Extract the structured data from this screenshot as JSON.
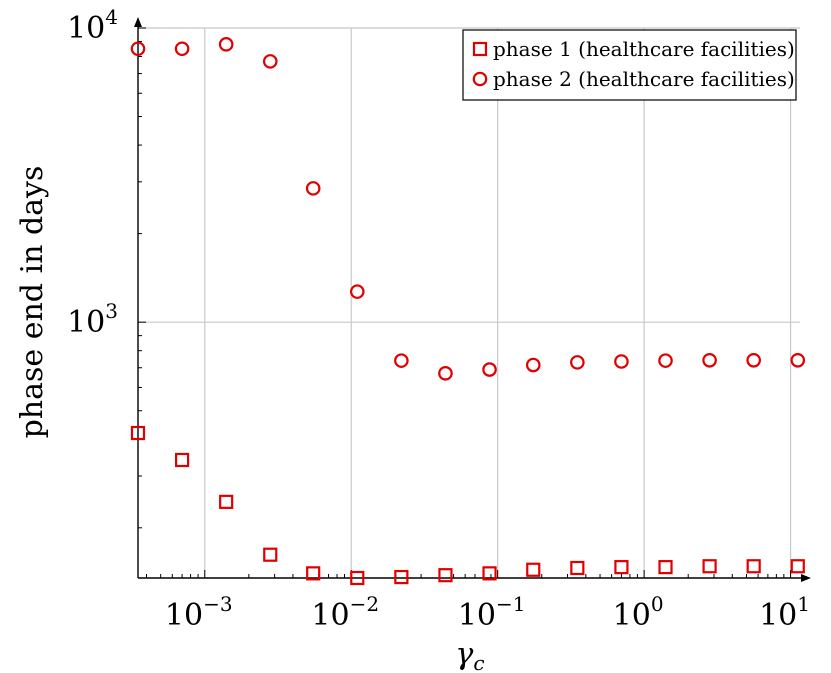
{
  "chart_data": {
    "type": "scatter",
    "xlabel": "γc",
    "ylabel": "phase end in days",
    "x_scale": "log",
    "y_scale": "log",
    "xlim": [
      0.00035,
      11.6
    ],
    "ylim": [
      135,
      10000
    ],
    "grid": true,
    "legend_position": "top-right",
    "x_ticks": [
      {
        "base": "10",
        "exp": "−3"
      },
      {
        "base": "10",
        "exp": "−2"
      },
      {
        "base": "10",
        "exp": "−1"
      },
      {
        "base": "10",
        "exp": "0"
      },
      {
        "base": "10",
        "exp": "1"
      }
    ],
    "y_ticks": [
      {
        "base": "10",
        "exp": "3"
      },
      {
        "base": "10",
        "exp": "4"
      }
    ],
    "series": [
      {
        "name": "phase 1 (healthcare facilities)",
        "marker": "square",
        "color": "#e00000",
        "x": [
          0.00035,
          0.0007,
          0.0014,
          0.0028,
          0.0055,
          0.011,
          0.022,
          0.044,
          0.088,
          0.175,
          0.35,
          0.7,
          1.4,
          2.8,
          5.6,
          11.2
        ],
        "y": [
          420,
          340,
          245,
          162,
          140,
          135,
          136,
          138,
          140,
          144,
          146,
          147,
          147,
          148,
          148,
          148
        ]
      },
      {
        "name": "phase 2 (healthcare facilities)",
        "marker": "circle",
        "color": "#e00000",
        "x": [
          0.00035,
          0.0007,
          0.0014,
          0.0028,
          0.0055,
          0.011,
          0.022,
          0.044,
          0.088,
          0.175,
          0.35,
          0.7,
          1.4,
          2.8,
          5.6,
          11.2
        ],
        "y": [
          8500,
          8500,
          8800,
          7700,
          2850,
          1270,
          740,
          670,
          690,
          715,
          730,
          735,
          740,
          742,
          742,
          742
        ]
      }
    ]
  }
}
